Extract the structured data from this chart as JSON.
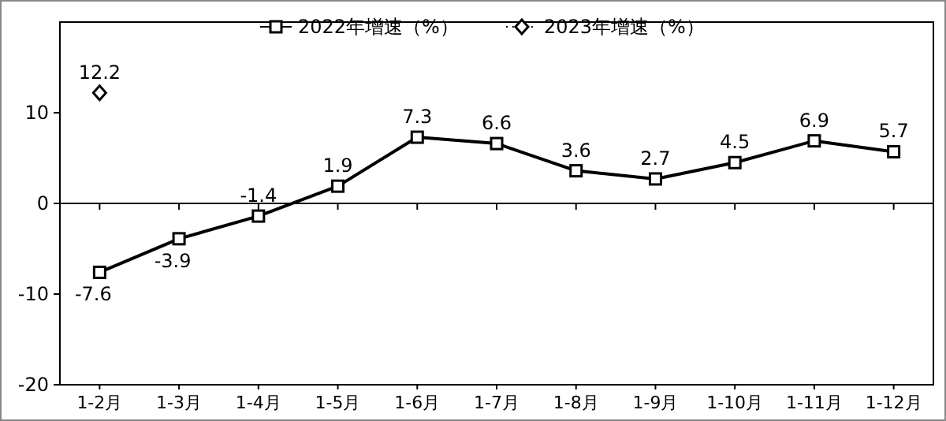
{
  "chart_data": {
    "type": "line",
    "categories": [
      "1-2月",
      "1-3月",
      "1-4月",
      "1-5月",
      "1-6月",
      "1-7月",
      "1-8月",
      "1-9月",
      "1-10月",
      "1-11月",
      "1-12月"
    ],
    "series": [
      {
        "name": "2022年增速（%）",
        "color": "#000000",
        "marker": "square",
        "values": [
          -7.6,
          -3.9,
          -1.4,
          1.9,
          7.3,
          6.6,
          3.6,
          2.7,
          4.5,
          6.9,
          5.7
        ]
      },
      {
        "name": "2023年增速（%）",
        "color": "#000000",
        "marker": "diamond",
        "type": "scatter",
        "values": [
          12.2,
          null,
          null,
          null,
          null,
          null,
          null,
          null,
          null,
          null,
          null
        ]
      }
    ],
    "ylim": [
      -20,
      20
    ],
    "yticks": [
      -20,
      -10,
      0,
      10
    ],
    "data_labels": true,
    "legend": "top"
  }
}
